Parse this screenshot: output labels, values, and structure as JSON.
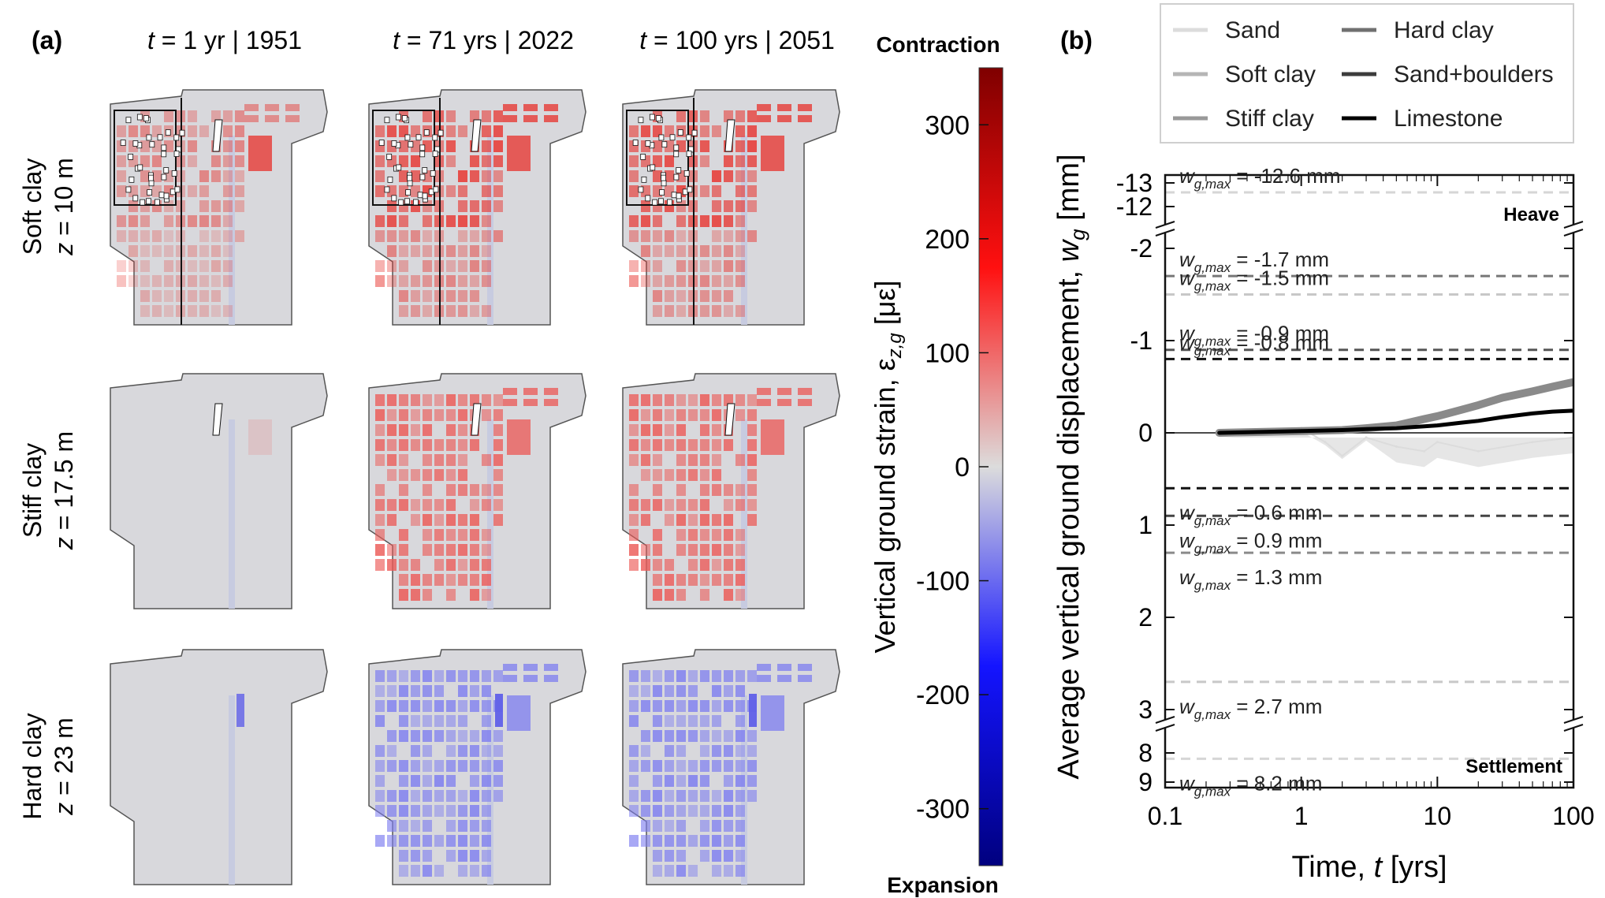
{
  "panel_a": {
    "label": "(a)",
    "columns": [
      {
        "t_sym": "t",
        "text": " = 1 yr | 1951",
        "fraction": 0.0
      },
      {
        "t_sym": "t",
        "text": " = 71 yrs | 2022",
        "fraction": 1.0
      },
      {
        "t_sym": "t",
        "text": " = 100 yrs | 2051",
        "fraction": 1.0
      }
    ],
    "rows": [
      {
        "name": "Soft clay",
        "z_sym": "z",
        "z_text": " = 10 m",
        "sign": 1,
        "color": "#e8342f"
      },
      {
        "name": "Stiff clay",
        "z_sym": "z",
        "z_text": " = 17.5 m",
        "sign": 1,
        "color": "#ec5a57"
      },
      {
        "name": "Hard clay",
        "z_sym": "z",
        "z_text": " = 23 m",
        "sign": -1,
        "color": "#7f7ff0"
      }
    ],
    "colors": {
      "base": "#d8d8dc",
      "river": "#c7cbe0",
      "outline": "#555555"
    }
  },
  "colorbar": {
    "top_label": "Contraction",
    "bottom_label": "Expansion",
    "title_main": "Vertical ground strain, ε",
    "title_sub": "z,g",
    "title_unit": " [με]",
    "range": [
      -350,
      350
    ],
    "ticks": [
      "300",
      "200",
      "100",
      "0",
      "-100",
      "-200",
      "-300"
    ],
    "tick_values": [
      300,
      200,
      100,
      0,
      -100,
      -200,
      -300
    ]
  },
  "chart_data": {
    "type": "line",
    "panel_label": "(b)",
    "xlabel_main": "Time, ",
    "xlabel_sym": "t",
    "xlabel_unit": " [yrs]",
    "ylabel_main": "Average vertical ground displacement, ",
    "ylabel_sym": "w",
    "ylabel_sub": "g",
    "ylabel_unit": " [mm]",
    "xscale": "log",
    "xlim": [
      0.1,
      100
    ],
    "x_ticks": [
      0.1,
      1,
      10,
      100
    ],
    "x_tick_labels": [
      "0.1",
      "1",
      "10",
      "100"
    ],
    "y_ticks": [
      {
        "value": -13,
        "label": "-13"
      },
      {
        "value": -12,
        "label": "-12"
      },
      {
        "value": -2,
        "label": "-2"
      },
      {
        "value": -1,
        "label": "-1"
      },
      {
        "value": 0,
        "label": "0"
      },
      {
        "value": 1,
        "label": "1"
      },
      {
        "value": 2,
        "label": "2"
      },
      {
        "value": 3,
        "label": "3"
      },
      {
        "value": 8,
        "label": "8"
      },
      {
        "value": 9,
        "label": "9"
      }
    ],
    "heave_label": "Heave",
    "settlement_label": "Settlement",
    "legend_position": "top",
    "legend": [
      {
        "name": "Sand",
        "color": "#dcdcdc"
      },
      {
        "name": "Hard clay",
        "color": "#707070"
      },
      {
        "name": "Soft clay",
        "color": "#b5b5b5"
      },
      {
        "name": "Sand+boulders",
        "color": "#3c3c3c"
      },
      {
        "name": "Stiff clay",
        "color": "#999999"
      },
      {
        "name": "Limestone",
        "color": "#000000"
      }
    ],
    "wmax_annotations": [
      {
        "value": -12.6,
        "text": " = -12.6 mm",
        "color": "#d6d6d6"
      },
      {
        "value": -1.7,
        "text": " = -1.7 mm",
        "color": "#777777"
      },
      {
        "value": -1.5,
        "text": " = -1.5 mm",
        "color": "#c8c8c8"
      },
      {
        "value": -0.9,
        "text": " = -0.9 mm",
        "color": "#555555"
      },
      {
        "value": -0.8,
        "text": " = -0.8 mm",
        "color": "#111111"
      },
      {
        "value": 0.6,
        "text": " = 0.6 mm",
        "color": "#111111"
      },
      {
        "value": 0.9,
        "text": " = 0.9 mm",
        "color": "#444444"
      },
      {
        "value": 1.3,
        "text": " = 1.3 mm",
        "color": "#8a8a8a"
      },
      {
        "value": 2.7,
        "text": " = 2.7 mm",
        "color": "#c8c8c8"
      },
      {
        "value": 8.2,
        "text": " = 8.2 mm",
        "color": "#d6d6d6"
      }
    ],
    "wmax_sym": "w",
    "wmax_sub": "g,max",
    "series": [
      {
        "name": "Sand",
        "color": "#dcdcdc",
        "width": 2,
        "x": [
          0.25,
          0.4,
          0.6,
          1.0,
          1.5,
          2.0,
          3.0,
          5.0,
          8.0,
          10,
          20,
          50,
          100
        ],
        "y": [
          0.02,
          0.0,
          -0.02,
          -0.05,
          0.1,
          0.25,
          0.05,
          0.15,
          0.2,
          0.1,
          0.2,
          0.1,
          0.05
        ]
      },
      {
        "name": "Hard clay",
        "color": "#8a8a8a",
        "width": 10,
        "x": [
          0.25,
          1.0,
          2.0,
          3.0,
          5.0,
          8.0,
          10,
          15,
          20,
          30,
          50,
          70,
          100
        ],
        "y": [
          0.0,
          -0.02,
          -0.03,
          -0.05,
          -0.08,
          -0.15,
          -0.18,
          -0.25,
          -0.3,
          -0.38,
          -0.45,
          -0.5,
          -0.55
        ]
      },
      {
        "name": "Limestone",
        "color": "#000000",
        "width": 5,
        "x": [
          0.25,
          1.0,
          2.0,
          3.0,
          5.0,
          8.0,
          10,
          15,
          20,
          30,
          50,
          70,
          100
        ],
        "y": [
          0.0,
          -0.02,
          -0.03,
          -0.04,
          -0.05,
          -0.07,
          -0.08,
          -0.11,
          -0.13,
          -0.17,
          -0.21,
          -0.23,
          -0.24
        ]
      }
    ]
  }
}
